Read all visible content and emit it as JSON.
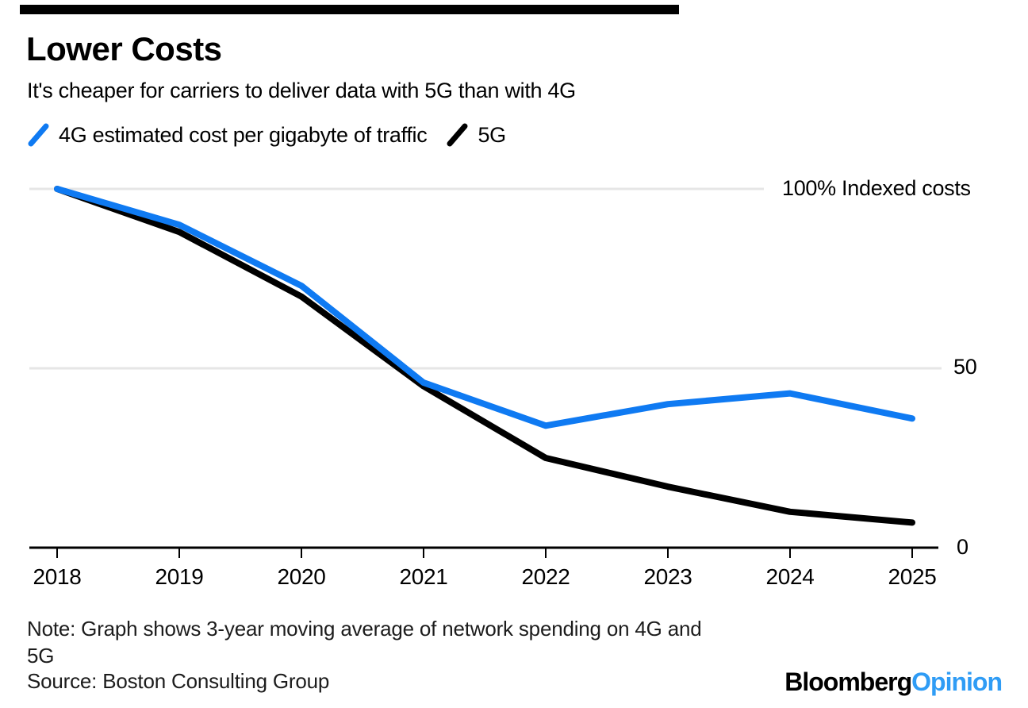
{
  "header": {
    "title": "Lower Costs",
    "subtitle": "It's cheaper for carriers to deliver data with 5G than with 4G"
  },
  "legend": {
    "items": [
      {
        "label": "4G estimated cost per gigabyte of traffic",
        "color": "#0f7af2"
      },
      {
        "label": "5G",
        "color": "#000000"
      }
    ]
  },
  "chart_data": {
    "type": "line",
    "categories": [
      "2018",
      "2019",
      "2020",
      "2021",
      "2022",
      "2023",
      "2024",
      "2025"
    ],
    "series": [
      {
        "name": "4G estimated cost per gigabyte of traffic",
        "color": "#0f7af2",
        "values": [
          100,
          90,
          73,
          46,
          34,
          40,
          43,
          36
        ]
      },
      {
        "name": "5G",
        "color": "#000000",
        "values": [
          100,
          88,
          70,
          45,
          25,
          17,
          10,
          7
        ]
      }
    ],
    "ylim": [
      0,
      100
    ],
    "y_ticks": [
      {
        "value": 100,
        "label": "100% Indexed costs"
      },
      {
        "value": 50,
        "label": "50"
      },
      {
        "value": 0,
        "label": "0"
      }
    ],
    "grid": "horizontal",
    "legend_position": "top",
    "gridline_color": "#e6e6e6",
    "axis_color": "#000000"
  },
  "footer": {
    "note": "Note: Graph shows 3-year moving average of network spending on 4G and\n5G",
    "source": "Source: Boston Consulting Group",
    "logo": {
      "part1": "Bloomberg",
      "part2": "Opinion",
      "part2_color": "#2f9cf5"
    }
  }
}
